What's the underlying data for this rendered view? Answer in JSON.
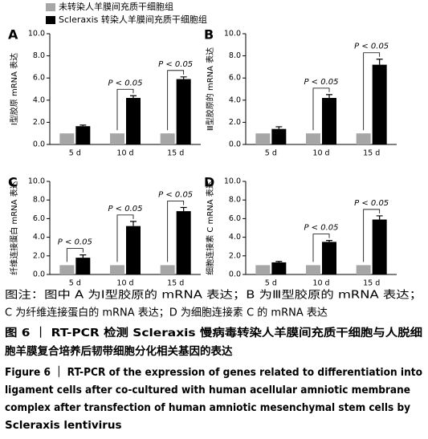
{
  "chart_data": [
    {
      "type": "bar",
      "label": "A",
      "ylabel": "Ⅰ型胶原 mRNA 表达",
      "categories": [
        "5 d",
        "10 d",
        "15 d"
      ],
      "series": [
        {
          "name": "未转染人羊膜间充质干细胞组",
          "color": "#a6a6a6",
          "values": [
            1,
            1,
            1
          ]
        },
        {
          "name": "Scleraxis 转染人羊膜间充质干细胞组",
          "color": "#000000",
          "values": [
            1.65,
            4.2,
            5.9
          ],
          "errors": [
            0.1,
            0.2,
            0.2
          ]
        }
      ],
      "p_labels": [
        null,
        "P < 0.05",
        "P < 0.05"
      ],
      "ylim": [
        0,
        10
      ],
      "yticks": [
        {
          "value": 0,
          "label": "0.0"
        },
        {
          "value": 2,
          "label": "2.0"
        },
        {
          "value": 4,
          "label": "4.0"
        },
        {
          "value": 6,
          "label": "6.0"
        },
        {
          "value": 8,
          "label": "8.0"
        },
        {
          "value": 10,
          "label": "10.0"
        }
      ]
    },
    {
      "type": "bar",
      "label": "B",
      "ylabel": "Ⅲ型胶原的 mRNA 表达",
      "categories": [
        "5 d",
        "10 d",
        "15 d"
      ],
      "series": [
        {
          "color": "#a6a6a6",
          "values": [
            1,
            1,
            1
          ]
        },
        {
          "color": "#000000",
          "values": [
            1.4,
            4.2,
            7.2
          ],
          "errors": [
            0.2,
            0.3,
            0.5
          ]
        }
      ],
      "p_labels": [
        null,
        "P < 0.05",
        "P < 0.05"
      ],
      "ylim": [
        0,
        10
      ],
      "yticks": [
        {
          "value": 0,
          "label": "0.0"
        },
        {
          "value": 2,
          "label": "2.0"
        },
        {
          "value": 4,
          "label": "4.0"
        },
        {
          "value": 6,
          "label": "6.0"
        },
        {
          "value": 8,
          "label": "8.0"
        },
        {
          "value": 10,
          "label": "10.0"
        }
      ]
    },
    {
      "type": "bar",
      "label": "C",
      "ylabel": "纤维连接蛋白 mRNA 表达",
      "categories": [
        "5 d",
        "10 d",
        "15 d"
      ],
      "series": [
        {
          "color": "#a6a6a6",
          "values": [
            1,
            1,
            1
          ]
        },
        {
          "color": "#000000",
          "values": [
            1.8,
            5.2,
            6.8
          ],
          "errors": [
            0.3,
            0.5,
            0.4
          ]
        }
      ],
      "p_labels": [
        "P < 0.05",
        "P < 0.05",
        "P < 0.05"
      ],
      "ylim": [
        0,
        10
      ],
      "yticks": [
        {
          "value": 0,
          "label": "0.0"
        },
        {
          "value": 2,
          "label": "2.0"
        },
        {
          "value": 4,
          "label": "4.0"
        },
        {
          "value": 6,
          "label": "6.0"
        },
        {
          "value": 8,
          "label": "8.0"
        },
        {
          "value": 10,
          "label": "10.0"
        }
      ]
    },
    {
      "type": "bar",
      "label": "D",
      "ylabel": "细胞连接素 C mRNA 表达",
      "categories": [
        "5 d",
        "10 d",
        "15 d"
      ],
      "series": [
        {
          "color": "#a6a6a6",
          "values": [
            1,
            1,
            1
          ]
        },
        {
          "color": "#000000",
          "values": [
            1.3,
            3.5,
            5.9
          ],
          "errors": [
            0.1,
            0.15,
            0.4
          ]
        }
      ],
      "p_labels": [
        null,
        "P < 0.05",
        "P < 0.05"
      ],
      "ylim": [
        0,
        10
      ],
      "yticks": [
        {
          "value": 0,
          "label": "0.0"
        },
        {
          "value": 2,
          "label": "2.0"
        },
        {
          "value": 4,
          "label": "4.0"
        },
        {
          "value": 6,
          "label": "6.0"
        },
        {
          "value": 8,
          "label": "8.0"
        },
        {
          "value": 10,
          "label": "10.0"
        }
      ]
    }
  ],
  "note": [
    "图注：图中 A 为Ⅰ型胶原的 mRNA 表达；B 为Ⅲ型胶原的 mRNA 表达；",
    "C 为纤维连接蛋白的 mRNA 表达；D 为细胞连接素 C 的 mRNA 表达"
  ],
  "title_cn": [
    "图 6 ｜ RT-PCR 检测 Scleraxis 慢病毒转染人羊膜间充质干细胞与人脱细",
    "胞羊膜复合培养后韧带细胞分化相关基因的表达"
  ],
  "title_en": [
    "Figure 6 ｜ RT-PCR of the expression of genes related to differentiation into",
    "ligament cells after co-cultured with human acellular amniotic membrane",
    "complex after transfection of human amniotic mesenchymal stem cells by",
    "Scleraxis lentivirus"
  ]
}
